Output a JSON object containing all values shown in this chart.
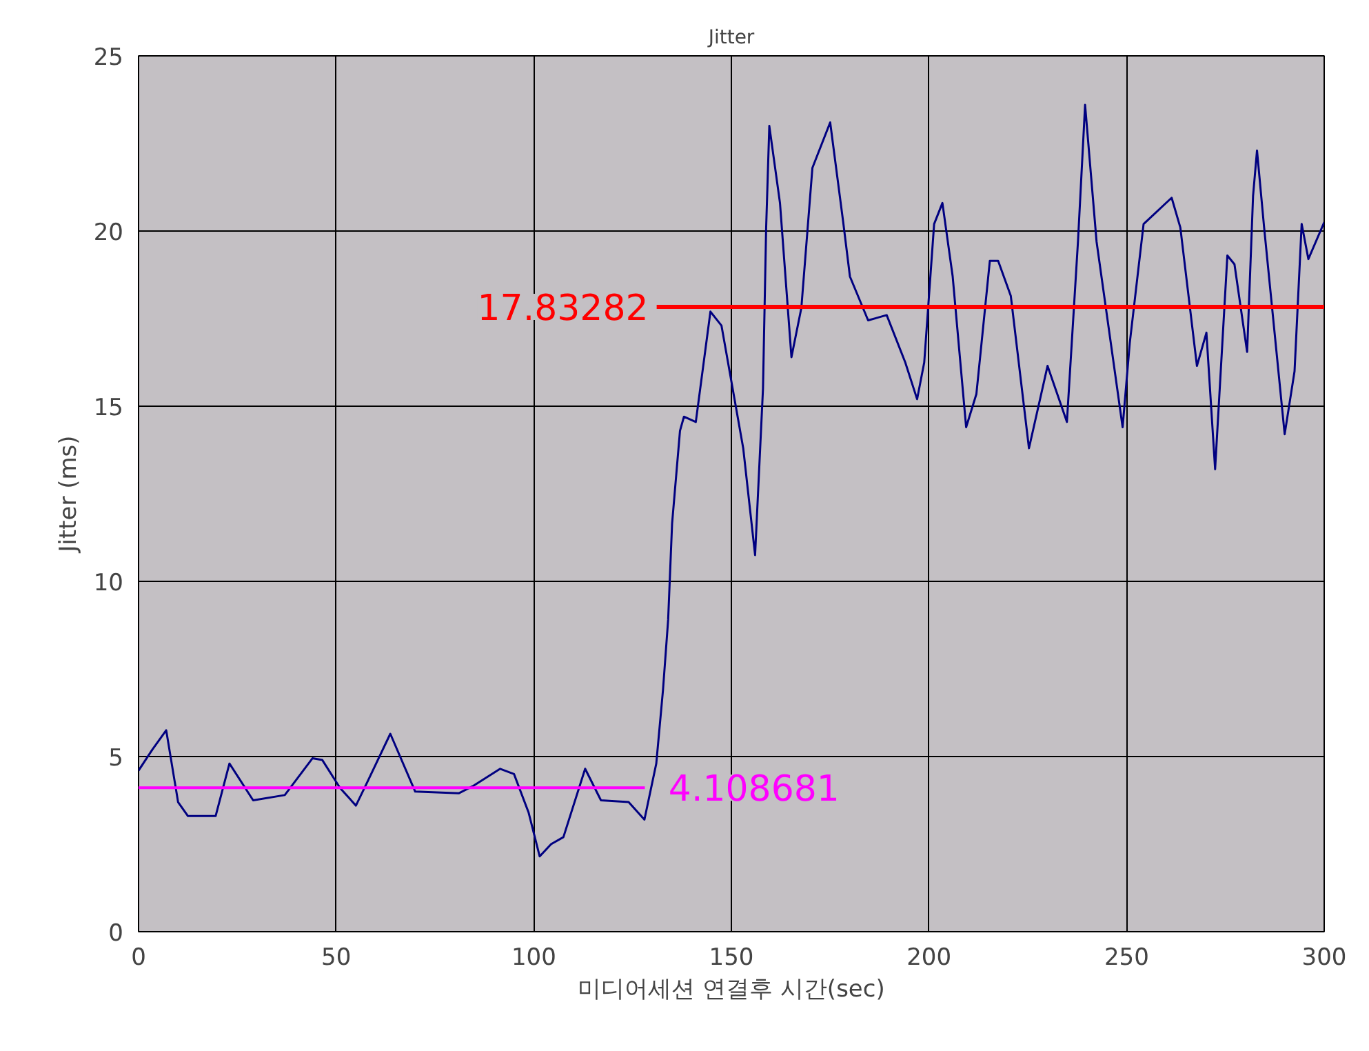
{
  "chart_data": {
    "type": "line",
    "title": "Jitter",
    "xlabel": "미디어세션 연결후 시간(sec)",
    "ylabel": "Jitter (ms)",
    "xlim": [
      0,
      300
    ],
    "xticks": [
      0,
      50,
      100,
      150,
      200,
      250,
      300
    ],
    "ylim": [
      0,
      25
    ],
    "yticks": [
      0,
      5,
      10,
      15,
      20,
      25
    ],
    "grid": true,
    "line_style": "solid",
    "x": [
      0,
      3.5,
      7,
      10,
      12.5,
      19.5,
      23,
      29,
      37,
      44,
      46.5,
      51,
      55,
      58,
      63.7,
      70,
      81,
      84.5,
      91.5,
      95,
      98.7,
      101.5,
      104.4,
      107.5,
      113,
      117,
      124,
      128,
      131,
      132.7,
      134,
      135,
      137,
      138,
      141,
      144.7,
      147.5,
      153,
      156,
      158,
      158.8,
      159.6,
      162.3,
      165.2,
      167.7,
      170.5,
      175,
      178.3,
      180,
      184.6,
      189.3,
      194,
      197,
      198.8,
      201.3,
      203.4,
      206,
      209.4,
      212,
      215.4,
      217.5,
      220.7,
      225.3,
      230,
      234.9,
      237.7,
      239.5,
      242.4,
      249,
      250.8,
      254.3,
      261.4,
      263.6,
      267.8,
      270.2,
      272.4,
      275.5,
      277.3,
      280.5,
      282,
      283,
      284.8,
      290,
      292.5,
      294.3,
      296,
      300
    ],
    "series": [
      {
        "color": "#000080",
        "values": [
          4.6,
          5.2,
          5.75,
          3.7,
          3.3,
          3.3,
          4.8,
          3.75,
          3.9,
          4.95,
          4.9,
          4.1,
          3.6,
          4.3,
          5.65,
          4.0,
          3.95,
          4.15,
          4.65,
          4.5,
          3.4,
          2.15,
          2.5,
          2.7,
          4.65,
          3.75,
          3.7,
          3.2,
          4.8,
          6.9,
          8.9,
          11.65,
          14.3,
          14.7,
          14.55,
          17.7,
          17.3,
          13.8,
          10.75,
          15.5,
          20.1,
          23.0,
          20.8,
          16.4,
          17.8,
          21.8,
          23.1,
          20.25,
          18.7,
          17.45,
          17.6,
          16.25,
          15.2,
          16.25,
          20.2,
          20.8,
          18.7,
          14.4,
          15.35,
          19.15,
          19.15,
          18.15,
          13.8,
          16.15,
          14.55,
          19.7,
          23.6,
          19.7,
          14.4,
          16.8,
          20.2,
          20.95,
          20.1,
          16.15,
          17.1,
          13.2,
          19.3,
          19.05,
          16.55,
          21.0,
          22.3,
          20.1,
          14.2,
          16.0,
          20.2,
          19.2,
          20.25
        ]
      }
    ],
    "ref_lines": [
      {
        "axis": "y",
        "value": 17.83282,
        "label": "17.83282",
        "color": "#ff0000"
      },
      {
        "axis": "y",
        "value": 4.108681,
        "label": "4.108681",
        "color": "#ff00ff"
      }
    ]
  }
}
